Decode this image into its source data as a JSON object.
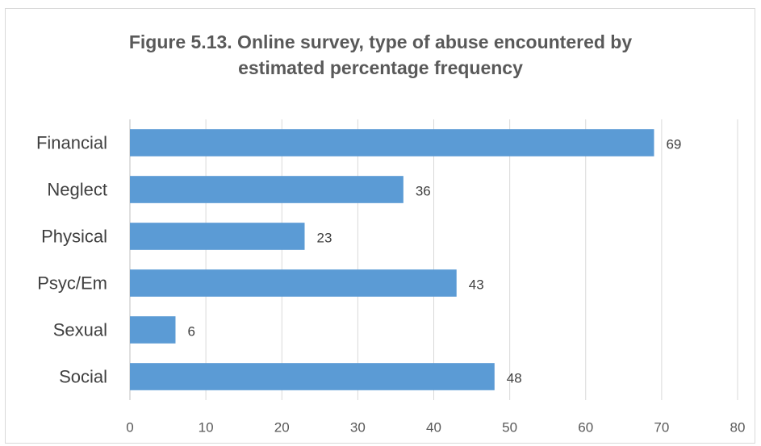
{
  "chart_data": {
    "type": "bar",
    "orientation": "horizontal",
    "title_lines": [
      "Figure 5.13. Online survey, type of abuse encountered by",
      "estimated percentage frequency"
    ],
    "categories": [
      "Financial",
      "Neglect",
      "Physical",
      "Psyc/Em",
      "Sexual",
      "Social"
    ],
    "values": [
      69,
      36,
      23,
      43,
      6,
      48
    ],
    "xlim": [
      0,
      80
    ],
    "xticks": [
      0,
      10,
      20,
      30,
      40,
      50,
      60,
      70,
      80
    ],
    "grid": true,
    "data_labels": true,
    "bar_color": "#5b9bd5",
    "grid_color": "#d9d9d9"
  }
}
